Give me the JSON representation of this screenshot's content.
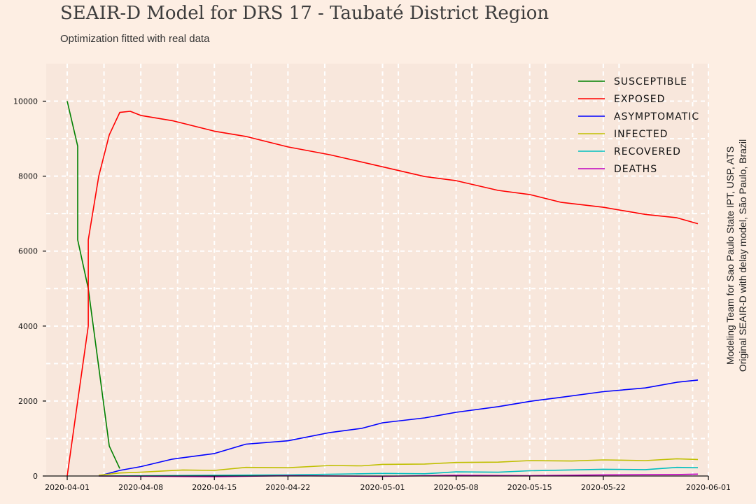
{
  "chart_data": {
    "type": "line",
    "title": "SEAIR-D Model for DRS 17 - Taubaté District Region",
    "subtitle": "Optimization fitted with real data",
    "credits": [
      "Modeling Team for Sao Paulo State IPT, USP, ATS",
      "Original SEAIR-D with delay model, São Paulo, Brazil"
    ],
    "xlim": [
      "2020-03-30",
      "2020-06-01"
    ],
    "ylim": [
      0,
      11000
    ],
    "xticks": [
      "2020-04-01",
      "2020-04-08",
      "2020-04-15",
      "2020-04-22",
      "2020-05-01",
      "2020-05-08",
      "2020-05-15",
      "2020-05-22",
      "2020-06-01"
    ],
    "yticks": [
      0,
      2000,
      4000,
      6000,
      8000,
      10000
    ],
    "grid": true,
    "legend_position": "top-right",
    "series": [
      {
        "name": "SUSCEPTIBLE",
        "color": "#008000",
        "points": [
          [
            "2020-04-01",
            10000
          ],
          [
            "2020-04-02",
            8800
          ],
          [
            "2020-04-02",
            6300
          ],
          [
            "2020-04-03",
            5000
          ],
          [
            "2020-04-04",
            2900
          ],
          [
            "2020-04-05",
            800
          ],
          [
            "2020-04-06",
            200
          ]
        ]
      },
      {
        "name": "EXPOSED",
        "color": "#ff0000",
        "points": [
          [
            "2020-04-01",
            0
          ],
          [
            "2020-04-02",
            2000
          ],
          [
            "2020-04-03",
            4000
          ],
          [
            "2020-04-03",
            6300
          ],
          [
            "2020-04-04",
            8000
          ],
          [
            "2020-04-05",
            9100
          ],
          [
            "2020-04-06",
            9700
          ],
          [
            "2020-04-07",
            9730
          ],
          [
            "2020-04-08",
            9620
          ],
          [
            "2020-04-11",
            9480
          ],
          [
            "2020-04-15",
            9200
          ],
          [
            "2020-04-18",
            9060
          ],
          [
            "2020-04-22",
            8780
          ],
          [
            "2020-04-26",
            8570
          ],
          [
            "2020-05-01",
            8250
          ],
          [
            "2020-05-05",
            7990
          ],
          [
            "2020-05-08",
            7880
          ],
          [
            "2020-05-12",
            7620
          ],
          [
            "2020-05-15",
            7510
          ],
          [
            "2020-05-18",
            7300
          ],
          [
            "2020-05-22",
            7170
          ],
          [
            "2020-05-26",
            6980
          ],
          [
            "2020-05-29",
            6890
          ],
          [
            "2020-05-31",
            6730
          ]
        ]
      },
      {
        "name": "ASYMPTOMATIC",
        "color": "#0000ff",
        "points": [
          [
            "2020-04-04",
            0
          ],
          [
            "2020-04-06",
            150
          ],
          [
            "2020-04-08",
            250
          ],
          [
            "2020-04-11",
            450
          ],
          [
            "2020-04-15",
            600
          ],
          [
            "2020-04-18",
            850
          ],
          [
            "2020-04-22",
            940
          ],
          [
            "2020-04-26",
            1160
          ],
          [
            "2020-04-29",
            1270
          ],
          [
            "2020-05-01",
            1420
          ],
          [
            "2020-05-05",
            1550
          ],
          [
            "2020-05-08",
            1700
          ],
          [
            "2020-05-12",
            1850
          ],
          [
            "2020-05-15",
            1990
          ],
          [
            "2020-05-18",
            2100
          ],
          [
            "2020-05-22",
            2250
          ],
          [
            "2020-05-26",
            2350
          ],
          [
            "2020-05-29",
            2500
          ],
          [
            "2020-05-31",
            2560
          ]
        ]
      },
      {
        "name": "INFECTED",
        "color": "#bfbf00",
        "points": [
          [
            "2020-04-04",
            20
          ],
          [
            "2020-04-06",
            80
          ],
          [
            "2020-04-08",
            100
          ],
          [
            "2020-04-12",
            160
          ],
          [
            "2020-04-15",
            150
          ],
          [
            "2020-04-18",
            230
          ],
          [
            "2020-04-22",
            220
          ],
          [
            "2020-04-26",
            280
          ],
          [
            "2020-04-29",
            270
          ],
          [
            "2020-05-01",
            310
          ],
          [
            "2020-05-05",
            320
          ],
          [
            "2020-05-08",
            360
          ],
          [
            "2020-05-12",
            370
          ],
          [
            "2020-05-15",
            410
          ],
          [
            "2020-05-19",
            400
          ],
          [
            "2020-05-22",
            430
          ],
          [
            "2020-05-26",
            410
          ],
          [
            "2020-05-29",
            460
          ],
          [
            "2020-05-31",
            440
          ]
        ]
      },
      {
        "name": "RECOVERED",
        "color": "#00bfbf",
        "points": [
          [
            "2020-04-04",
            0
          ],
          [
            "2020-04-15",
            20
          ],
          [
            "2020-04-22",
            30
          ],
          [
            "2020-05-01",
            70
          ],
          [
            "2020-05-05",
            60
          ],
          [
            "2020-05-08",
            110
          ],
          [
            "2020-05-12",
            100
          ],
          [
            "2020-05-15",
            140
          ],
          [
            "2020-05-22",
            180
          ],
          [
            "2020-05-26",
            170
          ],
          [
            "2020-05-29",
            230
          ],
          [
            "2020-05-31",
            220
          ]
        ]
      },
      {
        "name": "DEATHS",
        "color": "#bf00bf",
        "points": [
          [
            "2020-04-04",
            0
          ],
          [
            "2020-04-15",
            -20
          ],
          [
            "2020-04-22",
            10
          ],
          [
            "2020-05-01",
            -10
          ],
          [
            "2020-05-08",
            20
          ],
          [
            "2020-05-15",
            10
          ],
          [
            "2020-05-22",
            30
          ],
          [
            "2020-05-29",
            40
          ],
          [
            "2020-05-31",
            50
          ]
        ]
      }
    ]
  }
}
